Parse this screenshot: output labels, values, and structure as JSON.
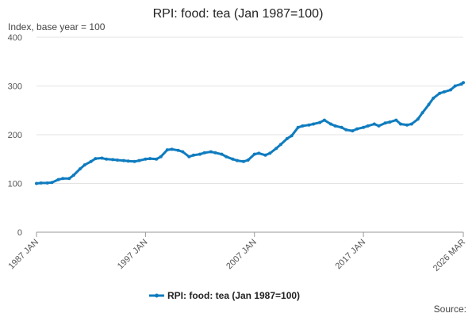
{
  "chart_data": {
    "type": "line",
    "title": "RPI: food: tea (Jan 1987=100)",
    "ylabel": "Index, base year = 100",
    "xlabel": "",
    "ylim": [
      0,
      400
    ],
    "yticks": [
      0,
      100,
      200,
      300,
      400
    ],
    "xrange": [
      "1987-01",
      "2026-03"
    ],
    "xticks": [
      {
        "label": "1987 JAN",
        "date": "1987-01"
      },
      {
        "label": "1997 JAN",
        "date": "1997-01"
      },
      {
        "label": "2007 JAN",
        "date": "2007-01"
      },
      {
        "label": "2017 JAN",
        "date": "2017-01"
      },
      {
        "label": "2026 MAR",
        "date": "2026-03"
      }
    ],
    "grid": "horizontal",
    "legend_position": "bottom",
    "color": "#0f7cbf",
    "series": [
      {
        "name": "RPI: food: tea (Jan 1987=100)",
        "points": [
          [
            "1987-01",
            100
          ],
          [
            "1987-06",
            101
          ],
          [
            "1988-01",
            101
          ],
          [
            "1988-06",
            102
          ],
          [
            "1989-01",
            108
          ],
          [
            "1989-06",
            110
          ],
          [
            "1990-01",
            110
          ],
          [
            "1990-06",
            117
          ],
          [
            "1991-01",
            130
          ],
          [
            "1991-06",
            138
          ],
          [
            "1992-01",
            145
          ],
          [
            "1992-06",
            151
          ],
          [
            "1993-01",
            152
          ],
          [
            "1993-06",
            150
          ],
          [
            "1994-01",
            149
          ],
          [
            "1994-06",
            148
          ],
          [
            "1995-01",
            147
          ],
          [
            "1995-06",
            146
          ],
          [
            "1996-01",
            145
          ],
          [
            "1996-06",
            147
          ],
          [
            "1997-01",
            150
          ],
          [
            "1997-06",
            151
          ],
          [
            "1998-01",
            150
          ],
          [
            "1998-06",
            155
          ],
          [
            "1999-01",
            169
          ],
          [
            "1999-06",
            170
          ],
          [
            "2000-01",
            168
          ],
          [
            "2000-06",
            165
          ],
          [
            "2001-01",
            155
          ],
          [
            "2001-06",
            158
          ],
          [
            "2002-01",
            160
          ],
          [
            "2002-06",
            163
          ],
          [
            "2003-01",
            165
          ],
          [
            "2003-06",
            163
          ],
          [
            "2004-01",
            160
          ],
          [
            "2004-06",
            155
          ],
          [
            "2005-01",
            150
          ],
          [
            "2005-06",
            147
          ],
          [
            "2006-01",
            145
          ],
          [
            "2006-06",
            148
          ],
          [
            "2007-01",
            160
          ],
          [
            "2007-06",
            162
          ],
          [
            "2008-01",
            158
          ],
          [
            "2008-06",
            162
          ],
          [
            "2009-01",
            172
          ],
          [
            "2009-06",
            180
          ],
          [
            "2010-01",
            192
          ],
          [
            "2010-06",
            198
          ],
          [
            "2011-01",
            215
          ],
          [
            "2011-06",
            218
          ],
          [
            "2012-01",
            220
          ],
          [
            "2012-06",
            222
          ],
          [
            "2013-01",
            225
          ],
          [
            "2013-06",
            230
          ],
          [
            "2014-01",
            222
          ],
          [
            "2014-06",
            218
          ],
          [
            "2015-01",
            215
          ],
          [
            "2015-06",
            210
          ],
          [
            "2016-01",
            208
          ],
          [
            "2016-06",
            212
          ],
          [
            "2017-01",
            215
          ],
          [
            "2017-06",
            218
          ],
          [
            "2018-01",
            222
          ],
          [
            "2018-06",
            218
          ],
          [
            "2019-01",
            224
          ],
          [
            "2019-06",
            226
          ],
          [
            "2020-01",
            230
          ],
          [
            "2020-06",
            222
          ],
          [
            "2021-01",
            220
          ],
          [
            "2021-06",
            222
          ],
          [
            "2022-01",
            232
          ],
          [
            "2022-06",
            245
          ],
          [
            "2023-01",
            262
          ],
          [
            "2023-06",
            275
          ],
          [
            "2024-01",
            285
          ],
          [
            "2024-06",
            288
          ],
          [
            "2025-01",
            292
          ],
          [
            "2025-06",
            300
          ],
          [
            "2026-01",
            304
          ],
          [
            "2026-03",
            307
          ]
        ]
      }
    ]
  },
  "source_label": "Source:"
}
